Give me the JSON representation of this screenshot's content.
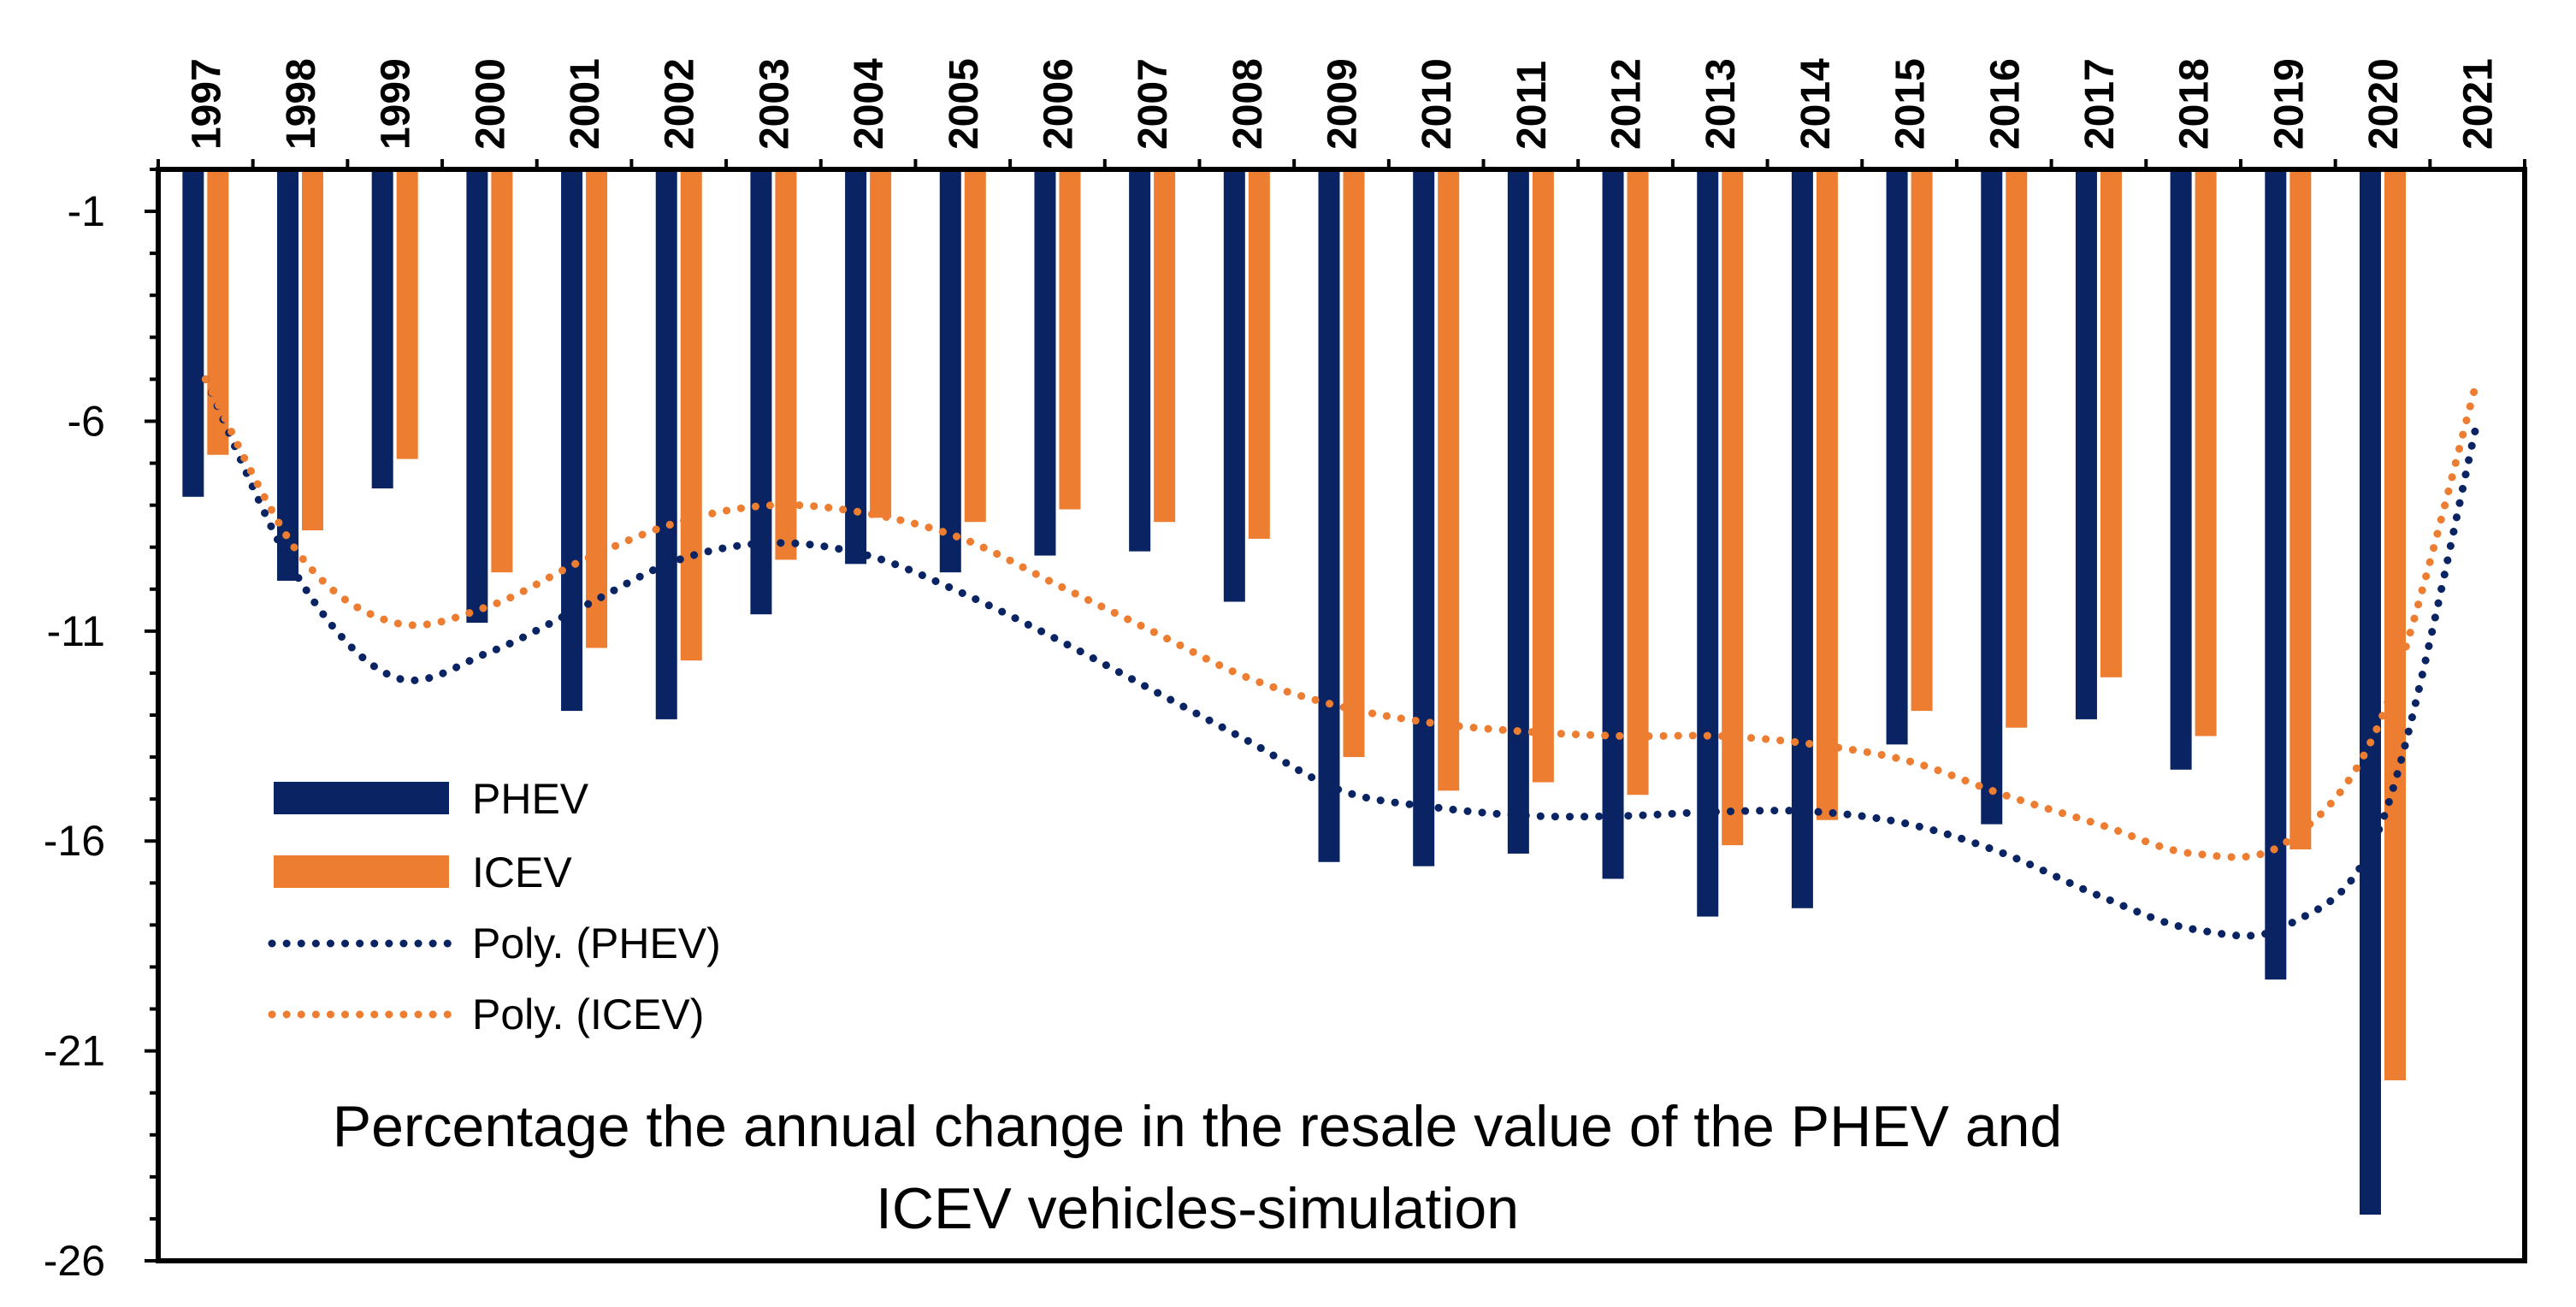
{
  "chart_data": {
    "type": "bar",
    "title": "Percentage the annual change in the resale value of the PHEV and ICEV vehicles-simulation",
    "title_lines": [
      "Percentage the annual change in the resale value of the PHEV and",
      "ICEV vehicles-simulation"
    ],
    "categories": [
      "1997",
      "1998",
      "1999",
      "2000",
      "2001",
      "2002",
      "2003",
      "2004",
      "2005",
      "2006",
      "2007",
      "2008",
      "2009",
      "2010",
      "2011",
      "2012",
      "2013",
      "2014",
      "2015",
      "2016",
      "2017",
      "2018",
      "2019",
      "2020",
      "2021"
    ],
    "ylim": [
      -26,
      0
    ],
    "yticks": [
      -1,
      -6,
      -11,
      -16,
      -21,
      -26
    ],
    "ytick_labels": [
      "-1",
      "-6",
      "-11",
      "-16",
      "-21",
      "-26"
    ],
    "xaxis_position": "top",
    "series": [
      {
        "name": "PHEV",
        "color": "#0a2463",
        "values": [
          -7.8,
          -9.8,
          -7.6,
          -10.8,
          -12.9,
          -13.1,
          -10.6,
          -9.4,
          -9.6,
          -9.2,
          -9.1,
          -10.3,
          -16.5,
          -16.6,
          -16.3,
          -16.9,
          -17.8,
          -17.6,
          -13.7,
          -15.6,
          -13.1,
          -14.3,
          -19.3,
          -24.9,
          null
        ]
      },
      {
        "name": "ICEV",
        "color": "#ed7d31",
        "values": [
          -6.8,
          -8.6,
          -6.9,
          -9.6,
          -11.4,
          -11.7,
          -9.3,
          -8.3,
          -8.4,
          -8.1,
          -8.4,
          -8.8,
          -14.0,
          -14.8,
          -14.6,
          -14.9,
          -16.1,
          -15.5,
          -12.9,
          -13.3,
          -12.1,
          -13.5,
          -16.2,
          -21.7,
          null
        ]
      }
    ],
    "trendlines": [
      {
        "name": "Poly. (PHEV)",
        "color": "#0a2463",
        "values": [
          -5.0,
          -9.8,
          -12.1,
          -11.5,
          -10.4,
          -9.3,
          -8.9,
          -9.2,
          -10.1,
          -11.2,
          -12.4,
          -13.6,
          -14.8,
          -15.2,
          -15.4,
          -15.4,
          -15.3,
          -15.3,
          -15.6,
          -16.3,
          -17.3,
          -18.1,
          -18.0,
          -15.5,
          -6.0
        ]
      },
      {
        "name": "Poly. (ICEV)",
        "color": "#ed7d31",
        "values": [
          -5.0,
          -9.2,
          -10.8,
          -10.4,
          -9.3,
          -8.4,
          -8.0,
          -8.2,
          -8.8,
          -9.9,
          -11.0,
          -12.1,
          -12.8,
          -13.2,
          -13.4,
          -13.5,
          -13.5,
          -13.7,
          -14.1,
          -14.9,
          -15.6,
          -16.3,
          -16.0,
          -13.0,
          -5.0
        ]
      }
    ],
    "legend": {
      "position": "left",
      "entries": [
        "PHEV",
        "ICEV",
        "Poly. (PHEV)",
        "Poly. (ICEV)"
      ]
    }
  }
}
